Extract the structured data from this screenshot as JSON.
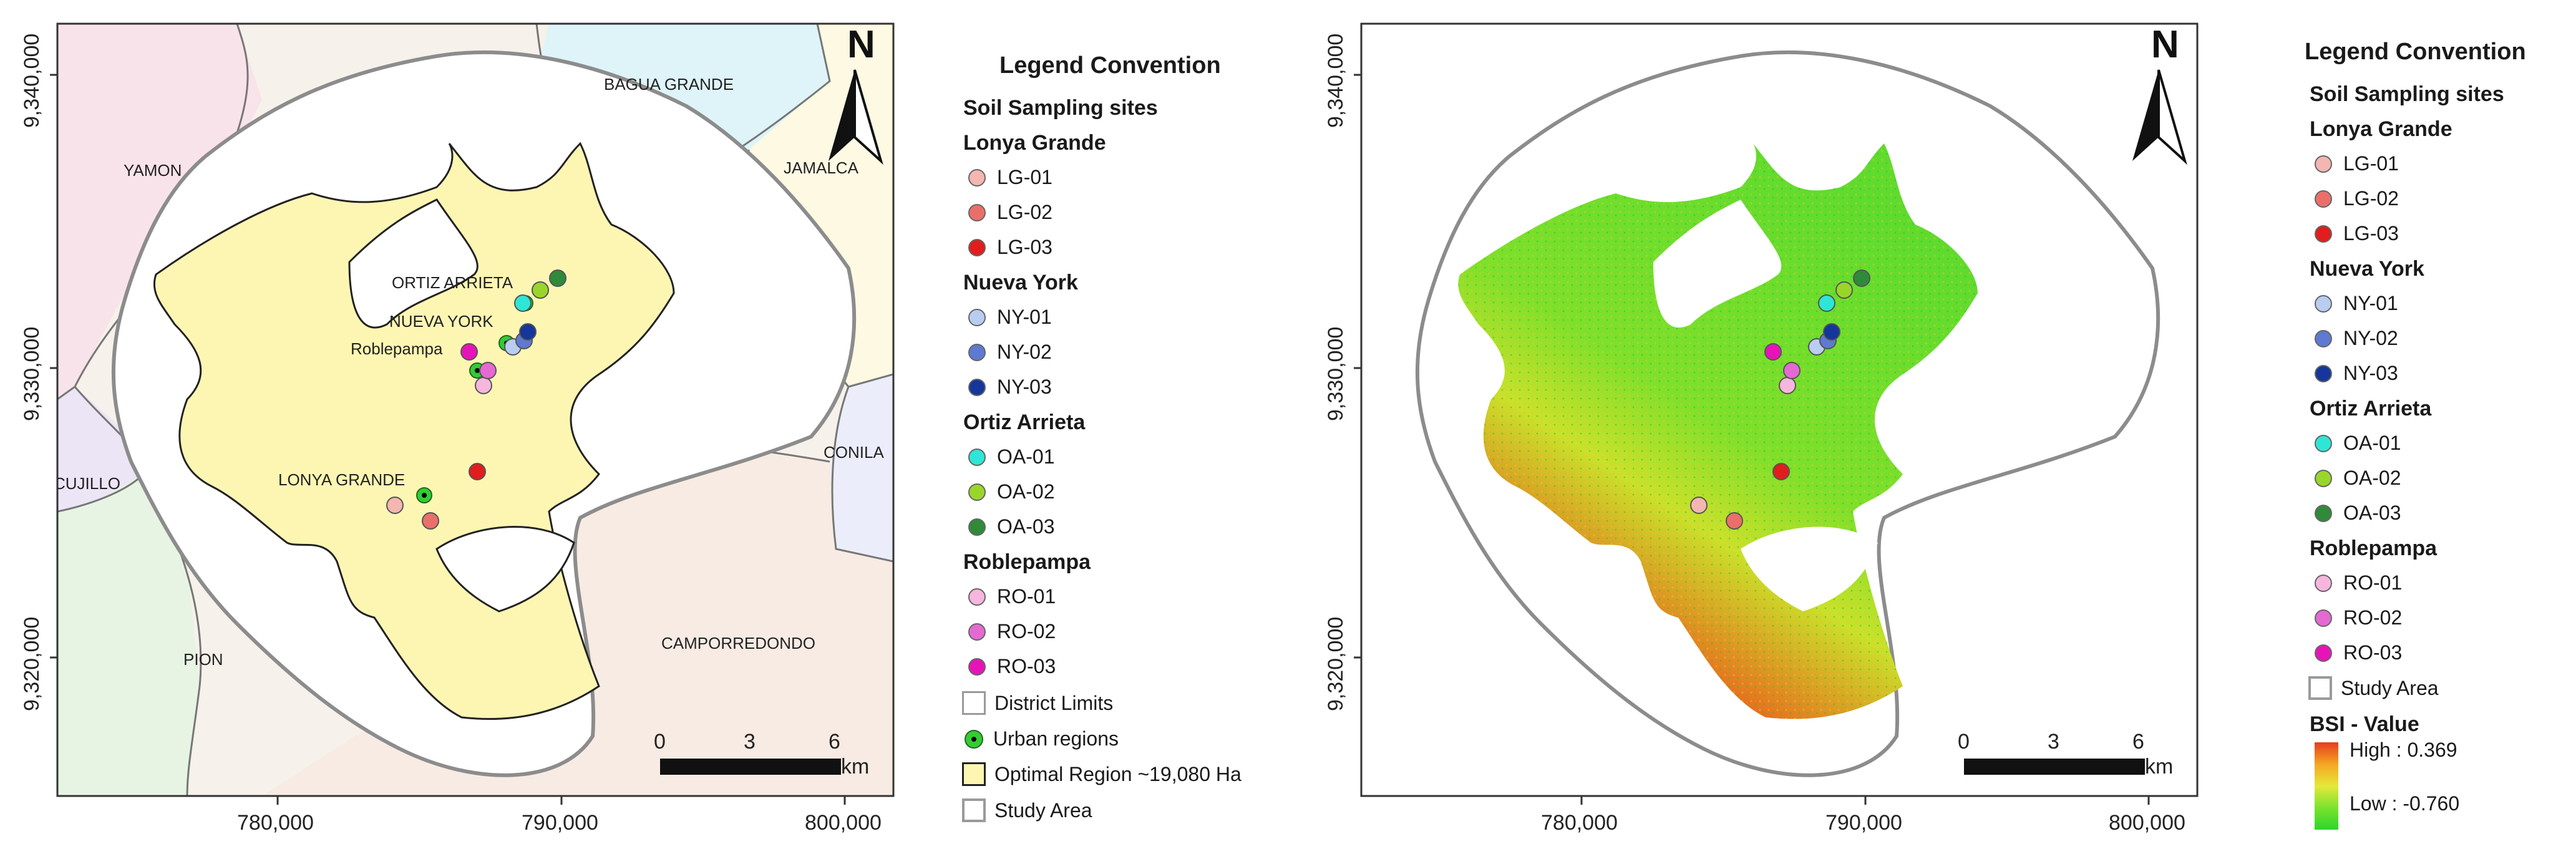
{
  "colors": {
    "lonya_grande": [
      "#f4b6b0",
      "#ea6f6a",
      "#e11d1d"
    ],
    "nueva_york": [
      "#b9cdf1",
      "#5e7ad1",
      "#15369a"
    ],
    "ortiz_arrieta": [
      "#2ee6d6",
      "#9ad62a",
      "#2f8a3a"
    ],
    "roblepampa": [
      "#f6b6de",
      "#e46ad2",
      "#e614b8"
    ],
    "optimal_region": "#fdf6b3",
    "urban": "#33cc33",
    "study_area_outline": "#9a9a9a"
  },
  "map1": {
    "y_ticks": [
      "9,340,000",
      "9,330,000",
      "9,320,000"
    ],
    "x_ticks": [
      "780,000",
      "790,000",
      "800,000"
    ],
    "north": "N",
    "scale_labels": [
      "0",
      "3",
      "6"
    ],
    "scale_unit": "km",
    "district_labels": [
      "YAMON",
      "BAGUA GRANDE",
      "JAMALCA",
      "CONILA",
      "CUJILLO",
      "PION",
      "CAMPORREDONDO"
    ],
    "place_labels": [
      "ORTIZ ARRIETA",
      "NUEVA YORK",
      "Roblepampa",
      "LONYA GRANDE"
    ]
  },
  "legend1": {
    "title": "Legend Convention",
    "subtitle": "Soil Sampling sites",
    "groups": [
      {
        "name": "Lonya Grande",
        "items": [
          "LG-01",
          "LG-02",
          "LG-03"
        ]
      },
      {
        "name": "Nueva York",
        "items": [
          "NY-01",
          "NY-02",
          "NY-03"
        ]
      },
      {
        "name": "Ortiz Arrieta",
        "items": [
          "OA-01",
          "OA-02",
          "OA-03"
        ]
      },
      {
        "name": "Roblepampa",
        "items": [
          "RO-01",
          "RO-02",
          "RO-03"
        ]
      }
    ],
    "extra": [
      "District Limits",
      "Urban regions",
      "Optimal Region ~19,080 Ha",
      "Study Area"
    ]
  },
  "map2": {
    "y_ticks": [
      "9,340,000",
      "9,330,000",
      "9,320,000"
    ],
    "x_ticks": [
      "780,000",
      "790,000",
      "800,000"
    ],
    "north": "N",
    "scale_labels": [
      "0",
      "3",
      "6"
    ],
    "scale_unit": "km"
  },
  "legend2": {
    "title": "Legend Convention",
    "subtitle": "Soil Sampling sites",
    "groups": [
      {
        "name": "Lonya Grande",
        "items": [
          "LG-01",
          "LG-02",
          "LG-03"
        ]
      },
      {
        "name": "Nueva York",
        "items": [
          "NY-01",
          "NY-02",
          "NY-03"
        ]
      },
      {
        "name": "Ortiz Arrieta",
        "items": [
          "OA-01",
          "OA-02",
          "OA-03"
        ]
      },
      {
        "name": "Roblepampa",
        "items": [
          "RO-01",
          "RO-02",
          "RO-03"
        ]
      }
    ],
    "study_area": "Study Area",
    "bsi_title": "BSI - Value",
    "bsi_high": "High : 0.369",
    "bsi_low": "Low : -0.760"
  }
}
